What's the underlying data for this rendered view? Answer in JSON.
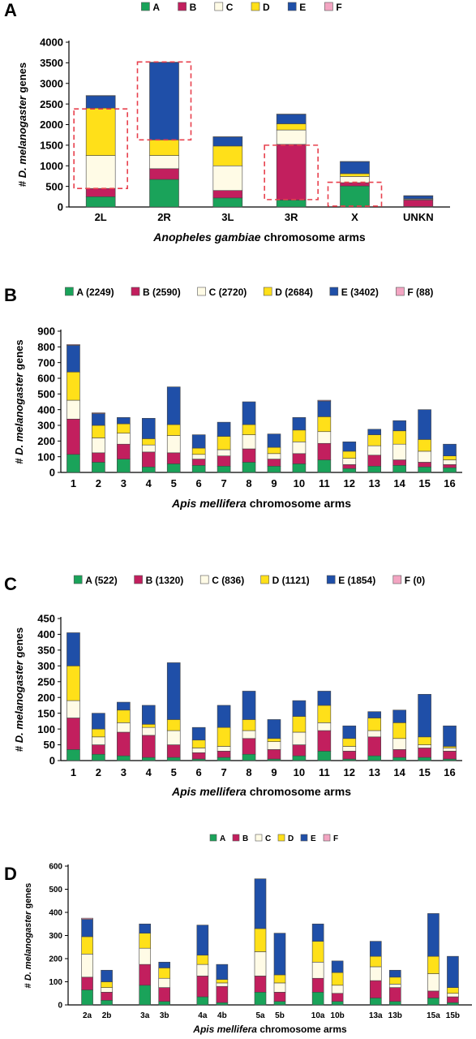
{
  "colors": {
    "A": "#1aa35a",
    "B": "#c21f5e",
    "C": "#fffbe6",
    "D": "#ffe019",
    "E": "#1f4fa8",
    "F": "#f3a5c2",
    "highlight": "#e8404d"
  },
  "chart_data": [
    {
      "panel_label": "A",
      "type": "bar",
      "stacked": true,
      "legend": [
        "A",
        "B",
        "C",
        "D",
        "E",
        "F"
      ],
      "legend_placement": "top",
      "ylabel_prefix": "# ",
      "ylabel_italic": "D. melanogaster",
      "ylabel_suffix": " genes",
      "xlabel_italic": "Anopheles gambiae",
      "xlabel_suffix": " chromosome arms",
      "ylim": [
        0,
        4000
      ],
      "yticks": [
        "0",
        "500",
        "1000",
        "1500",
        "2000",
        "2500",
        "3000",
        "3500",
        "4000"
      ],
      "categories": [
        "2L",
        "2R",
        "3L",
        "3R",
        "X",
        "UNKN"
      ],
      "series": [
        {
          "name": "A",
          "values": [
            250,
            670,
            220,
            170,
            510,
            10
          ]
        },
        {
          "name": "B",
          "values": [
            200,
            260,
            180,
            1350,
            80,
            160
          ]
        },
        {
          "name": "C",
          "values": [
            800,
            320,
            600,
            350,
            150,
            20
          ]
        },
        {
          "name": "D",
          "values": [
            1150,
            380,
            480,
            150,
            70,
            10
          ]
        },
        {
          "name": "E",
          "values": [
            300,
            1880,
            220,
            230,
            290,
            70
          ]
        },
        {
          "name": "F",
          "values": [
            5,
            5,
            5,
            5,
            5,
            5
          ]
        }
      ],
      "highlights": [
        {
          "category": "2L",
          "range": [
            450,
            2380
          ]
        },
        {
          "category": "2R",
          "range": [
            1630,
            3520
          ]
        },
        {
          "category": "3R",
          "range": [
            180,
            1500
          ]
        },
        {
          "category": "X",
          "range": [
            20,
            600
          ]
        }
      ]
    },
    {
      "panel_label": "B",
      "type": "bar",
      "stacked": true,
      "legend": [
        "A (2249)",
        "B (2590)",
        "C (2720)",
        "D (2684)",
        "E (3402)",
        "F (88)"
      ],
      "legend_placement": "top",
      "ylabel_prefix": "# ",
      "ylabel_italic": "D. melanogaster",
      "ylabel_suffix": " genes",
      "xlabel_italic": "Apis mellifera",
      "xlabel_suffix": " chromosome arms",
      "ylim": [
        0,
        900
      ],
      "yticks": [
        "0",
        "100",
        "200",
        "300",
        "400",
        "500",
        "600",
        "700",
        "800",
        "900"
      ],
      "categories": [
        "1",
        "2",
        "3",
        "4",
        "5",
        "6",
        "7",
        "8",
        "9",
        "10",
        "11",
        "12",
        "13",
        "14",
        "15",
        "16"
      ],
      "series": [
        {
          "name": "A",
          "values": [
            115,
            65,
            85,
            35,
            55,
            45,
            40,
            65,
            40,
            55,
            80,
            25,
            40,
            45,
            35,
            30
          ]
        },
        {
          "name": "B",
          "values": [
            225,
            60,
            95,
            95,
            70,
            40,
            65,
            85,
            45,
            65,
            105,
            25,
            70,
            35,
            30,
            20
          ]
        },
        {
          "name": "C",
          "values": [
            120,
            95,
            70,
            45,
            110,
            30,
            40,
            90,
            35,
            75,
            75,
            40,
            60,
            100,
            70,
            30
          ]
        },
        {
          "name": "D",
          "values": [
            180,
            80,
            60,
            40,
            70,
            40,
            85,
            65,
            40,
            75,
            95,
            45,
            70,
            85,
            75,
            25
          ]
        },
        {
          "name": "E",
          "values": [
            170,
            75,
            40,
            130,
            240,
            85,
            90,
            145,
            85,
            80,
            100,
            60,
            35,
            65,
            190,
            75
          ]
        },
        {
          "name": "F",
          "values": [
            5,
            5,
            0,
            0,
            0,
            0,
            0,
            0,
            0,
            0,
            5,
            0,
            0,
            0,
            0,
            0
          ]
        }
      ]
    },
    {
      "panel_label": "C",
      "type": "bar",
      "stacked": true,
      "legend": [
        "A (522)",
        "B (1320)",
        "C (836)",
        "D (1121)",
        "E (1854)",
        "F (0)"
      ],
      "legend_placement": "top",
      "ylabel_prefix": "# ",
      "ylabel_italic": "D. melanogaster",
      "ylabel_suffix": " genes",
      "xlabel_italic": "Apis mellifera",
      "xlabel_suffix": " chromosome arms",
      "ylim": [
        0,
        450
      ],
      "yticks": [
        "0",
        "50",
        "100",
        "150",
        "200",
        "250",
        "300",
        "350",
        "400",
        "450"
      ],
      "categories": [
        "1",
        "2",
        "3",
        "4",
        "5",
        "6",
        "7",
        "8",
        "9",
        "10",
        "11",
        "12",
        "13",
        "14",
        "15",
        "16"
      ],
      "series": [
        {
          "name": "A",
          "values": [
            35,
            20,
            15,
            10,
            10,
            5,
            10,
            20,
            5,
            15,
            30,
            5,
            15,
            10,
            10,
            5
          ]
        },
        {
          "name": "B",
          "values": [
            100,
            30,
            75,
            70,
            40,
            20,
            20,
            50,
            30,
            35,
            65,
            25,
            60,
            25,
            30,
            25
          ]
        },
        {
          "name": "C",
          "values": [
            55,
            25,
            30,
            25,
            45,
            15,
            15,
            25,
            25,
            40,
            25,
            15,
            20,
            35,
            10,
            10
          ]
        },
        {
          "name": "D",
          "values": [
            110,
            25,
            40,
            10,
            35,
            25,
            60,
            35,
            10,
            50,
            55,
            25,
            40,
            50,
            25,
            5
          ]
        },
        {
          "name": "E",
          "values": [
            105,
            50,
            25,
            60,
            180,
            40,
            70,
            90,
            60,
            50,
            45,
            40,
            20,
            40,
            135,
            65
          ]
        },
        {
          "name": "F",
          "values": [
            0,
            0,
            0,
            0,
            0,
            0,
            0,
            0,
            0,
            0,
            0,
            0,
            0,
            0,
            0,
            0
          ]
        }
      ]
    },
    {
      "panel_label": "D",
      "type": "bar",
      "stacked": true,
      "legend": [
        "A",
        "B",
        "C",
        "D",
        "E",
        "F"
      ],
      "legend_placement": "top",
      "ylabel_prefix": "# ",
      "ylabel_italic": "D. melanogaster",
      "ylabel_suffix": " genes",
      "xlabel_italic": "Apis mellifera",
      "xlabel_suffix": " chromosome arms",
      "ylim": [
        0,
        600
      ],
      "yticks": [
        "0",
        "100",
        "200",
        "300",
        "400",
        "500",
        "600"
      ],
      "categories": [
        "2a",
        "2b",
        "3a",
        "3b",
        "4a",
        "4b",
        "5a",
        "5b",
        "10a",
        "10b",
        "13a",
        "13b",
        "15a",
        "15b"
      ],
      "groups": [
        [
          0,
          1
        ],
        [
          2,
          3
        ],
        [
          4,
          5
        ],
        [
          6,
          7
        ],
        [
          8,
          9
        ],
        [
          10,
          11
        ],
        [
          12,
          13
        ]
      ],
      "series": [
        {
          "name": "A",
          "values": [
            65,
            20,
            85,
            15,
            35,
            10,
            55,
            15,
            55,
            15,
            30,
            15,
            30,
            10
          ]
        },
        {
          "name": "B",
          "values": [
            55,
            35,
            90,
            60,
            90,
            70,
            70,
            40,
            60,
            35,
            75,
            60,
            30,
            25
          ]
        },
        {
          "name": "C",
          "values": [
            100,
            20,
            70,
            40,
            50,
            15,
            105,
            40,
            70,
            35,
            60,
            15,
            75,
            15
          ]
        },
        {
          "name": "D",
          "values": [
            75,
            25,
            65,
            45,
            40,
            15,
            100,
            35,
            90,
            55,
            45,
            30,
            75,
            25
          ]
        },
        {
          "name": "E",
          "values": [
            75,
            50,
            40,
            25,
            130,
            65,
            215,
            180,
            75,
            50,
            65,
            30,
            185,
            135
          ]
        },
        {
          "name": "F",
          "values": [
            5,
            0,
            0,
            0,
            0,
            0,
            0,
            0,
            0,
            0,
            0,
            0,
            0,
            0
          ]
        }
      ]
    }
  ]
}
